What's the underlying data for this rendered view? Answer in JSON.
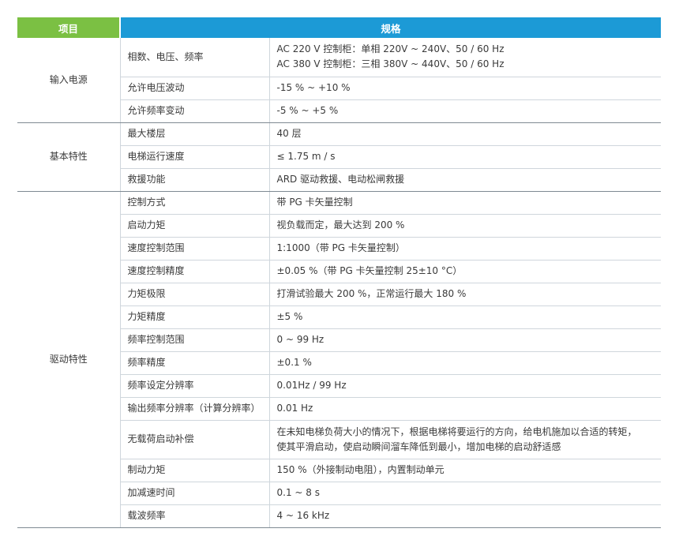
{
  "header": {
    "item": "项目",
    "spec": "规格"
  },
  "groups": [
    {
      "name": "输入电源",
      "rows": [
        {
          "param": "相数、电压、频率",
          "values": [
            "AC 220 V 控制柜：单相 220V ~ 240V、50 / 60 Hz",
            "AC 380 V 控制柜：三相 380V ~ 440V、50 / 60 Hz"
          ]
        },
        {
          "param": "允许电压波动",
          "values": [
            "-15 % ~ +10 %"
          ]
        },
        {
          "param": "允许频率变动",
          "values": [
            "-5 % ~ +5 %"
          ]
        }
      ]
    },
    {
      "name": "基本特性",
      "rows": [
        {
          "param": "最大楼层",
          "values": [
            "40 层"
          ]
        },
        {
          "param": "电梯运行速度",
          "values": [
            "≤ 1.75 m / s"
          ]
        },
        {
          "param": "救援功能",
          "values": [
            "ARD 驱动救援、电动松闸救援"
          ]
        }
      ]
    },
    {
      "name": "驱动特性",
      "rows": [
        {
          "param": "控制方式",
          "values": [
            "带 PG 卡矢量控制"
          ]
        },
        {
          "param": "启动力矩",
          "values": [
            "视负载而定，最大达到 200 %"
          ]
        },
        {
          "param": "速度控制范围",
          "values": [
            "1:1000（带 PG 卡矢量控制）"
          ]
        },
        {
          "param": "速度控制精度",
          "values": [
            "±0.05 %（带 PG 卡矢量控制 25±10 °C）"
          ]
        },
        {
          "param": "力矩极限",
          "values": [
            "打滑试验最大 200 %，正常运行最大 180 %"
          ]
        },
        {
          "param": "力矩精度",
          "values": [
            "±5 %"
          ]
        },
        {
          "param": "频率控制范围",
          "values": [
            "0 ~ 99 Hz"
          ]
        },
        {
          "param": "频率精度",
          "values": [
            "±0.1 %"
          ]
        },
        {
          "param": "频率设定分辨率",
          "values": [
            "0.01Hz / 99 Hz"
          ]
        },
        {
          "param": "输出频率分辨率（计算分辨率）",
          "values": [
            "0.01 Hz"
          ]
        },
        {
          "param": "无载荷启动补偿",
          "values": [
            "在未知电梯负荷大小的情况下，根据电梯将要运行的方向，给电机施加以合适的转矩，",
            "使其平滑启动，使启动瞬间溜车降低到最小，增加电梯的启动舒适感"
          ]
        },
        {
          "param": "制动力矩",
          "values": [
            "150 %（外接制动电阻），内置制动单元"
          ]
        },
        {
          "param": "加减速时间",
          "values": [
            "0.1 ~ 8 s"
          ]
        },
        {
          "param": "载波频率",
          "values": [
            "4 ~ 16 kHz"
          ]
        }
      ]
    }
  ]
}
